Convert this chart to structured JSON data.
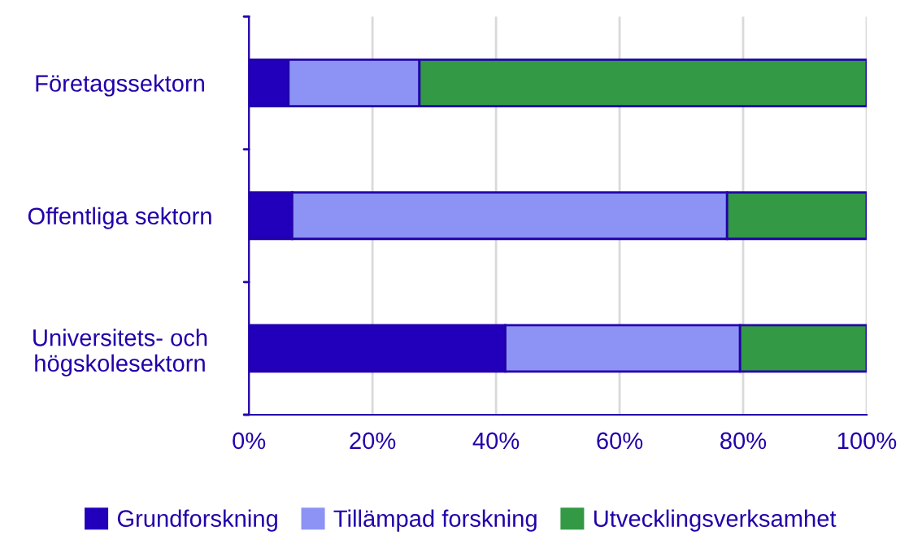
{
  "chart_data": {
    "type": "bar",
    "orientation": "horizontal",
    "stacked": true,
    "categories": [
      "Företagssektorn",
      "Offentliga sektorn",
      "Universitets- och\nhögskolesektorn"
    ],
    "series": [
      {
        "name": "Grundforskning",
        "color": "#2200bb",
        "values": [
          6.4,
          7.0,
          41.5
        ]
      },
      {
        "name": "Tillämpad forskning",
        "color": "#8c93f5",
        "values": [
          21.2,
          70.4,
          38.0
        ]
      },
      {
        "name": "Utvecklingsverksamhet",
        "color": "#339944",
        "values": [
          72.4,
          22.6,
          20.5
        ]
      }
    ],
    "xlim": [
      0,
      100
    ],
    "xticks": [
      {
        "value": 0,
        "label": "0%"
      },
      {
        "value": 20,
        "label": "20%"
      },
      {
        "value": 40,
        "label": "40%"
      },
      {
        "value": 60,
        "label": "60%"
      },
      {
        "value": 80,
        "label": "80%"
      },
      {
        "value": 100,
        "label": "100%"
      }
    ],
    "grid": "x",
    "legend": "bottom"
  }
}
